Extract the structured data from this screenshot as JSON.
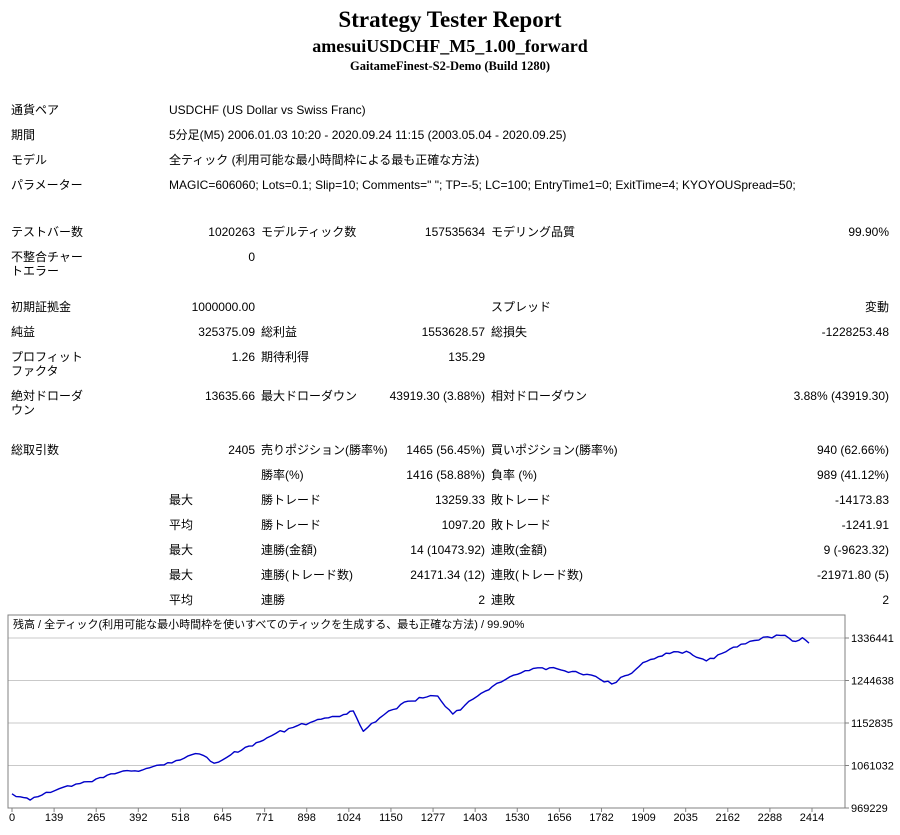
{
  "report": {
    "title": "Strategy Tester Report",
    "subtitle": "amesuiUSDCHF_M5_1.00_forward",
    "server": "GaitameFinest-S2-Demo (Build 1280)"
  },
  "stats": {
    "rows": [
      {
        "kind": "info",
        "label": "通貨ペア",
        "value": "USDCHF (US Dollar vs Swiss Franc)"
      },
      {
        "kind": "info",
        "label": "期間",
        "value": "5分足(M5) 2006.01.03 10:20 - 2020.09.24 11:15 (2003.05.04 - 2020.09.25)"
      },
      {
        "kind": "info",
        "label": "モデル",
        "value": "全ティック (利用可能な最小時間枠による最も正確な方法)"
      },
      {
        "kind": "info",
        "label": "パラメーター",
        "value": "MAGIC=606060; Lots=0.1; Slip=10; Comments=\" \"; TP=-5; LC=100; EntryTime1=0; ExitTime=4; KYOYOUSpread=50;"
      },
      {
        "kind": "spacer",
        "h": 22
      },
      {
        "kind": "stats",
        "c": [
          "テストバー数",
          "1020263",
          "モデルティック数",
          "157535634",
          "モデリング品質",
          "99.90%"
        ]
      },
      {
        "kind": "stats",
        "c": [
          "不整合チャー\nトエラー",
          "0",
          "",
          "",
          "",
          ""
        ]
      },
      {
        "kind": "spacer",
        "h": 10
      },
      {
        "kind": "stats",
        "c": [
          "初期証拠金",
          "1000000.00",
          "",
          "",
          "スプレッド",
          "変動"
        ]
      },
      {
        "kind": "stats",
        "c": [
          "純益",
          "325375.09",
          "総利益",
          "1553628.57",
          "総損失",
          "-1228253.48"
        ]
      },
      {
        "kind": "stats",
        "c": [
          "プロフィット\nファクタ",
          "1.26",
          "期待利得",
          "135.29",
          "",
          ""
        ]
      },
      {
        "kind": "stats",
        "c": [
          "絶対ドローダ\nウン",
          "13635.66",
          "最大ドローダウン",
          "43919.30 (3.88%)",
          "相対ドローダウン",
          "3.88% (43919.30)"
        ]
      },
      {
        "kind": "spacer",
        "h": 15
      },
      {
        "kind": "stats",
        "c": [
          "総取引数",
          "2405",
          "売りポジション(勝率%)",
          "1465 (56.45%)",
          "買いポジション(勝率%)",
          "940 (62.66%)"
        ]
      },
      {
        "kind": "stats",
        "c": [
          "",
          "",
          "勝率(%)",
          "1416 (58.88%)",
          "負率 (%)",
          "989 (41.12%)"
        ]
      },
      {
        "kind": "stats",
        "c": [
          "",
          "最大",
          "勝トレード",
          "13259.33",
          "敗トレード",
          "-14173.83"
        ],
        "sub": true
      },
      {
        "kind": "stats",
        "c": [
          "",
          "平均",
          "勝トレード",
          "1097.20",
          "敗トレード",
          "-1241.91"
        ],
        "sub": true
      },
      {
        "kind": "stats",
        "c": [
          "",
          "最大",
          "連勝(金額)",
          "14 (10473.92)",
          "連敗(金額)",
          "9 (-9623.32)"
        ],
        "sub": true
      },
      {
        "kind": "stats",
        "c": [
          "",
          "最大",
          "連勝(トレード数)",
          "24171.34 (12)",
          "連敗(トレード数)",
          "-21971.80 (5)"
        ],
        "sub": true
      },
      {
        "kind": "stats",
        "c": [
          "",
          "平均",
          "連勝",
          "2",
          "連敗",
          "2"
        ],
        "sub": true
      }
    ]
  },
  "chart_data": {
    "type": "line",
    "title": "残高 / 全ティック(利用可能な最小時間枠を使いすべてのティックを生成する、最も正確な方法) / 99.90%",
    "xlabel": "",
    "ylabel": "",
    "x_ticks": [
      0,
      139,
      265,
      392,
      518,
      645,
      771,
      898,
      1024,
      1150,
      1277,
      1403,
      1530,
      1656,
      1782,
      1909,
      2035,
      2162,
      2288,
      2414
    ],
    "y_ticks": [
      1336441,
      1244638,
      1152835,
      1061032,
      969229
    ],
    "xlim": [
      0,
      2414
    ],
    "ylim": [
      969229,
      1386000
    ],
    "grid": true,
    "legend_position": "none",
    "line_color": "#0000C8",
    "grid_color": "#c9c9c9",
    "border_color": "#808080",
    "series": [
      {
        "name": "残高",
        "points": [
          [
            0,
            1000000
          ],
          [
            25,
            993500
          ],
          [
            55,
            986400
          ],
          [
            90,
            997000
          ],
          [
            130,
            1007000
          ],
          [
            180,
            1016000
          ],
          [
            230,
            1026000
          ],
          [
            265,
            1035000
          ],
          [
            310,
            1043000
          ],
          [
            360,
            1049000
          ],
          [
            415,
            1056000
          ],
          [
            470,
            1067000
          ],
          [
            520,
            1077000
          ],
          [
            565,
            1086000
          ],
          [
            610,
            1066000
          ],
          [
            660,
            1084000
          ],
          [
            715,
            1103000
          ],
          [
            770,
            1121000
          ],
          [
            835,
            1141000
          ],
          [
            900,
            1154000
          ],
          [
            955,
            1164000
          ],
          [
            1000,
            1171000
          ],
          [
            1030,
            1179000
          ],
          [
            1060,
            1135000
          ],
          [
            1085,
            1152000
          ],
          [
            1110,
            1164000
          ],
          [
            1150,
            1182000
          ],
          [
            1195,
            1200000
          ],
          [
            1240,
            1207000
          ],
          [
            1285,
            1211000
          ],
          [
            1330,
            1172000
          ],
          [
            1365,
            1190000
          ],
          [
            1405,
            1211000
          ],
          [
            1450,
            1232000
          ],
          [
            1490,
            1247000
          ],
          [
            1525,
            1258000
          ],
          [
            1560,
            1266000
          ],
          [
            1600,
            1272000
          ],
          [
            1645,
            1270000
          ],
          [
            1690,
            1264000
          ],
          [
            1735,
            1258000
          ],
          [
            1775,
            1247000
          ],
          [
            1810,
            1237000
          ],
          [
            1850,
            1255000
          ],
          [
            1880,
            1267000
          ],
          [
            1915,
            1286000
          ],
          [
            1950,
            1296000
          ],
          [
            1985,
            1303000
          ],
          [
            2035,
            1308000
          ],
          [
            2065,
            1295000
          ],
          [
            2095,
            1287000
          ],
          [
            2130,
            1300000
          ],
          [
            2165,
            1312000
          ],
          [
            2200,
            1323000
          ],
          [
            2240,
            1331000
          ],
          [
            2280,
            1339000
          ],
          [
            2320,
            1342000
          ],
          [
            2345,
            1336000
          ],
          [
            2365,
            1329000
          ],
          [
            2385,
            1337000
          ],
          [
            2405,
            1325375
          ]
        ]
      }
    ]
  }
}
